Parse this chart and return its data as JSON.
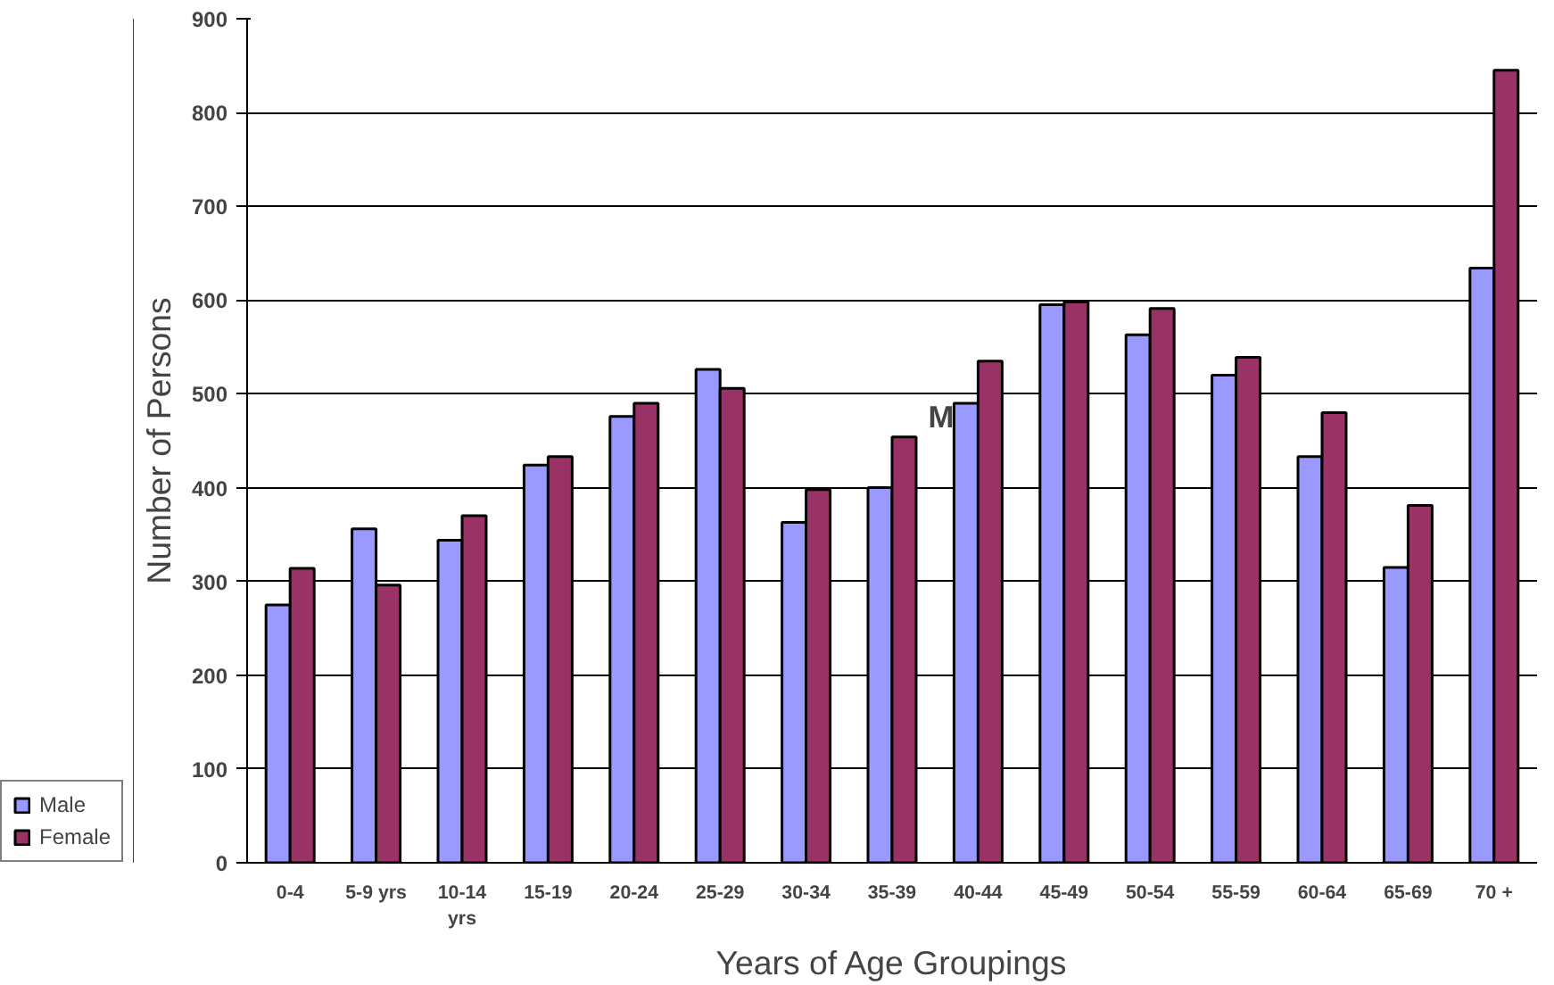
{
  "chart_data": {
    "type": "bar",
    "xlabel": "Years of Age Groupings",
    "ylabel": "Number of Persons",
    "categories": [
      "0-4",
      "5-9 yrs",
      "10-14 yrs",
      "15-19",
      "20-24",
      "25-29",
      "30-34",
      "35-39",
      "40-44",
      "45-49",
      "50-54",
      "55-59",
      "60-64",
      "65-69",
      "70 +"
    ],
    "series": [
      {
        "name": "Male",
        "color": "#9999ff",
        "values": [
          275,
          356,
          344,
          424,
          476,
          526,
          363,
          400,
          490,
          595,
          563,
          520,
          433,
          315,
          634
        ]
      },
      {
        "name": "Female",
        "color": "#993366",
        "values": [
          314,
          296,
          370,
          433,
          490,
          506,
          398,
          454,
          535,
          598,
          591,
          539,
          480,
          381,
          845
        ]
      }
    ],
    "ylim": [
      0,
      900
    ],
    "yticks": [
      0,
      100,
      200,
      300,
      400,
      500,
      600,
      700,
      800,
      900
    ],
    "grid": "y",
    "legend": "bottom left",
    "annotations": [
      {
        "text": "M",
        "x": "40-44",
        "y": 500
      }
    ]
  }
}
